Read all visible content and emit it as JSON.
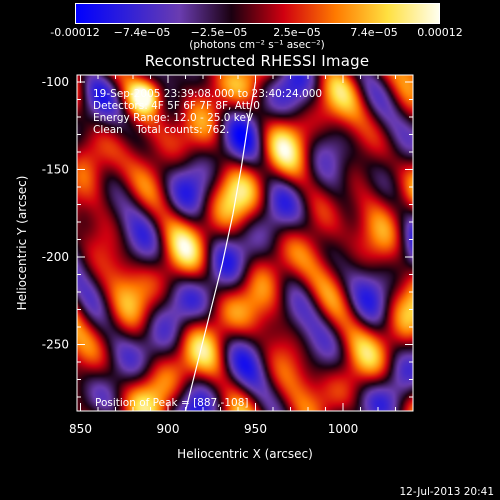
{
  "chart_data": {
    "type": "heatmap",
    "title": "Reconstructed RHESSI Image",
    "xlabel": "Heliocentric X (arcsec)",
    "ylabel": "Heliocentric Y (arcsec)",
    "xlim": [
      848,
      1040
    ],
    "ylim": [
      -288,
      -96
    ],
    "xticks": [
      850,
      900,
      950,
      1000
    ],
    "yticks": [
      -100,
      -150,
      -200,
      -250
    ],
    "colorbar": {
      "ticks": [
        "-0.00012",
        "−7.4e−05",
        "−2.5e−05",
        "2.5e−05",
        "7.4e−05",
        "0.00012"
      ],
      "tick_values": [
        -0.00012,
        -7.4e-05,
        -2.5e-05,
        2.5e-05,
        7.4e-05,
        0.00012
      ],
      "range": [
        -0.00012,
        0.00012
      ],
      "unit_label": "(photons cm⁻² s⁻¹ asec⁻²)",
      "colormap": [
        "#0000ff",
        "#3020d8",
        "#6a3cb0",
        "#1a0010",
        "#d00010",
        "#ff7a00",
        "#ffe040",
        "#fffff0"
      ]
    },
    "annotations": {
      "time_range": "19-Sep-2005 23:39:08.000 to 23:40:24.000",
      "detectors": "Detectors: 4F 5F 6F 7F 8F, Att 0",
      "energy": "Energy Range: 12.0 - 25.0 keV",
      "method": "Clean    Total counts: 762.",
      "peak": "Position of Peak = [887,-108]"
    },
    "peak_position": [
      887,
      -108
    ],
    "limb_curve": {
      "x": [
        910,
        917,
        924,
        931,
        937,
        942,
        946,
        950
      ],
      "y": [
        -288,
        -260,
        -232,
        -204,
        -176,
        -148,
        -122,
        -100
      ]
    }
  },
  "timestamp": "12-Jul-2013 20:41"
}
